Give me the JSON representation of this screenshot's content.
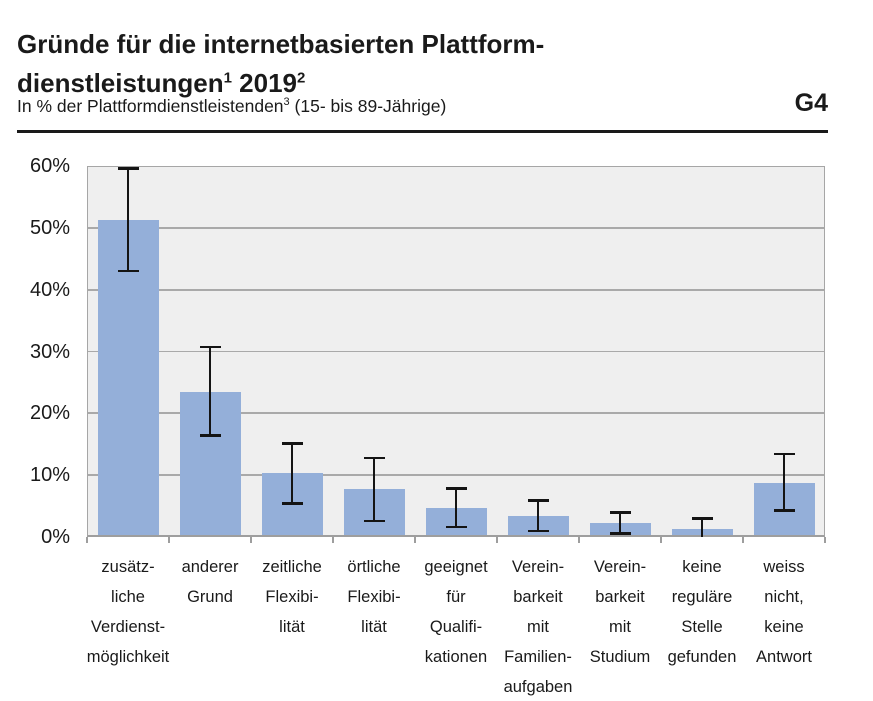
{
  "header": {
    "title_line1": "Gründe für die internetbasierten Plattform-",
    "title_line2_main": "dienstleistungen",
    "title_sup1": "1",
    "title_line2_rest": " 2019",
    "title_sup2": "2",
    "subtitle_main": "In % der Plattformdienstleistenden",
    "subtitle_sup": "3",
    "subtitle_rest": " (15- bis 89-Jährige)",
    "figure_id": "G4"
  },
  "colors": {
    "bar": "#94afd9",
    "plot_background": "#efefef",
    "gridline": "#a9a9a9",
    "error_bar": "#141414",
    "text": "#1a1a1a"
  },
  "chart_data": {
    "type": "bar",
    "title": "Gründe für die internetbasierten Plattformdienstleistungen 2019",
    "subtitle": "In % der Plattformdienstleistenden (15- bis 89-Jährige)",
    "figure_id": "G4",
    "ylabel": "%",
    "ylim": [
      0,
      60
    ],
    "ytick_step": 10,
    "ytick_labels": [
      "0%",
      "10%",
      "20%",
      "30%",
      "40%",
      "50%",
      "60%"
    ],
    "grid": true,
    "legend": "none",
    "categories": [
      "zusätzliche Verdienstmöglichkeit",
      "anderer Grund",
      "zeitliche Flexibilität",
      "örtliche Flexibilität",
      "geeignet für Qualifikationen",
      "Vereinbarkeit mit Familienaufgaben",
      "Vereinbarkeit mit Studium",
      "keine reguläre Stelle gefunden",
      "weiss nicht, keine Antwort"
    ],
    "category_label_lines": [
      [
        "zusätz-",
        "liche",
        "Verdienst-",
        "möglichkeit"
      ],
      [
        "anderer",
        "Grund"
      ],
      [
        "zeitliche",
        "Flexibi-",
        "lität"
      ],
      [
        "örtliche",
        "Flexibi-",
        "lität"
      ],
      [
        "geeignet",
        "für",
        "Qualifi-",
        "kationen"
      ],
      [
        "Verein-",
        "barkeit",
        "mit",
        "Familien-",
        "aufgaben"
      ],
      [
        "Verein-",
        "barkeit",
        "mit",
        "Studium"
      ],
      [
        "keine",
        "reguläre",
        "Stelle",
        "gefunden"
      ],
      [
        "weiss",
        "nicht,",
        "keine",
        "Antwort"
      ]
    ],
    "values": [
      51.2,
      23.5,
      10.3,
      7.7,
      4.7,
      3.4,
      2.3,
      1.3,
      8.8
    ],
    "error_low": [
      43.0,
      16.4,
      5.4,
      2.6,
      1.6,
      1.0,
      0.6,
      0.0,
      4.3
    ],
    "error_high": [
      59.6,
      30.7,
      15.1,
      12.8,
      7.8,
      5.9,
      4.0,
      3.0,
      13.4
    ]
  }
}
